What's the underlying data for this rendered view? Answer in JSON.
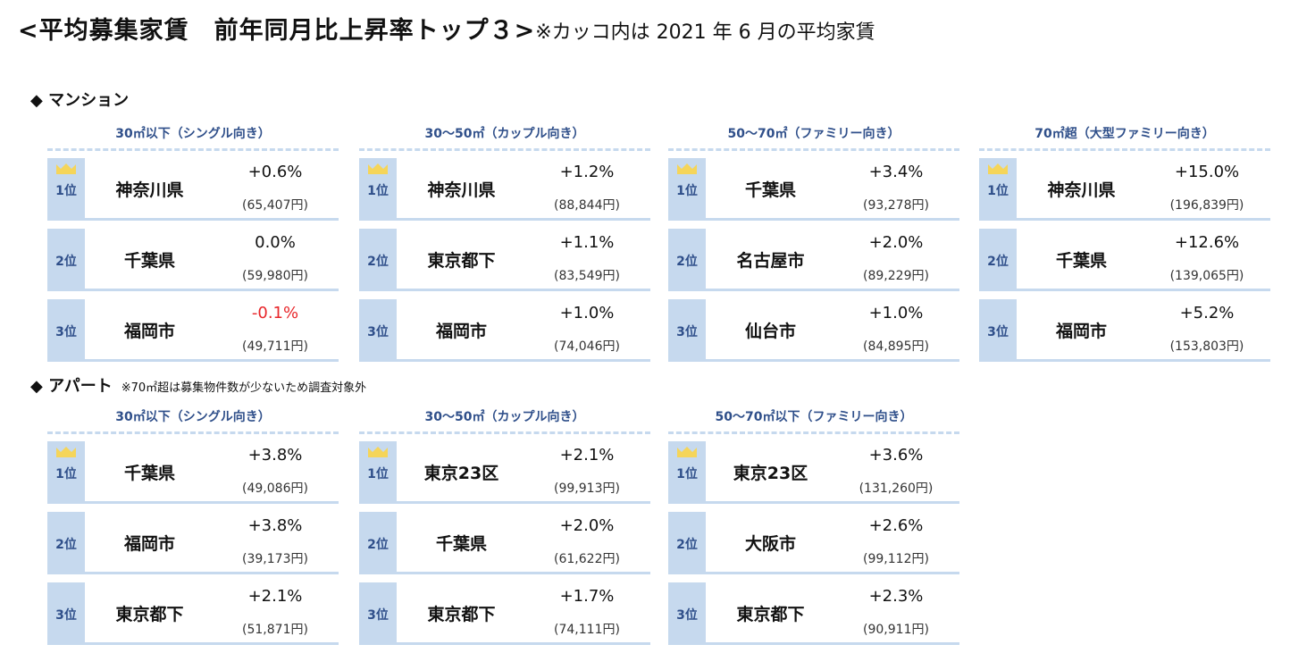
{
  "title": {
    "main": "<平均募集家賃　前年同月比上昇率トップ３>",
    "note": "※カッコ内は 2021 年 6 月の平均家賃"
  },
  "colors": {
    "accent": "#c6d9ee",
    "rank_text": "#2f4f8a",
    "crown": "#f5d55a",
    "negative": "#e8262a"
  },
  "mansion": {
    "label": "◆ マンション",
    "panels": [
      {
        "heading": "30㎡以下（シングル向き）",
        "rows": [
          {
            "rank": "1位",
            "name": "神奈川県",
            "pct": "+0.6%",
            "rent": "(65,407円)"
          },
          {
            "rank": "2位",
            "name": "千葉県",
            "pct": "0.0%",
            "rent": "(59,980円)"
          },
          {
            "rank": "3位",
            "name": "福岡市",
            "pct": "-0.1%",
            "rent": "(49,711円)"
          }
        ]
      },
      {
        "heading": "30〜50㎡（カップル向き）",
        "rows": [
          {
            "rank": "1位",
            "name": "神奈川県",
            "pct": "+1.2%",
            "rent": "(88,844円)"
          },
          {
            "rank": "2位",
            "name": "東京都下",
            "pct": "+1.1%",
            "rent": "(83,549円)"
          },
          {
            "rank": "3位",
            "name": "福岡市",
            "pct": "+1.0%",
            "rent": "(74,046円)"
          }
        ]
      },
      {
        "heading": "50〜70㎡（ファミリー向き）",
        "rows": [
          {
            "rank": "1位",
            "name": "千葉県",
            "pct": "+3.4%",
            "rent": "(93,278円)"
          },
          {
            "rank": "2位",
            "name": "名古屋市",
            "pct": "+2.0%",
            "rent": "(89,229円)"
          },
          {
            "rank": "3位",
            "name": "仙台市",
            "pct": "+1.0%",
            "rent": "(84,895円)"
          }
        ]
      },
      {
        "heading": "70㎡超（大型ファミリー向き）",
        "rows": [
          {
            "rank": "1位",
            "name": "神奈川県",
            "pct": "+15.0%",
            "rent": "(196,839円)"
          },
          {
            "rank": "2位",
            "name": "千葉県",
            "pct": "+12.6%",
            "rent": "(139,065円)"
          },
          {
            "rank": "3位",
            "name": "福岡市",
            "pct": "+5.2%",
            "rent": "(153,803円)"
          }
        ]
      }
    ]
  },
  "apart": {
    "label": "◆ アパート",
    "note": "※70㎡超は募集物件数が少ないため調査対象外",
    "panels": [
      {
        "heading": "30㎡以下（シングル向き）",
        "rows": [
          {
            "rank": "1位",
            "name": "千葉県",
            "pct": "+3.8%",
            "rent": "(49,086円)"
          },
          {
            "rank": "2位",
            "name": "福岡市",
            "pct": "+3.8%",
            "rent": "(39,173円)"
          },
          {
            "rank": "3位",
            "name": "東京都下",
            "pct": "+2.1%",
            "rent": "(51,871円)"
          }
        ]
      },
      {
        "heading": "30〜50㎡（カップル向き）",
        "rows": [
          {
            "rank": "1位",
            "name": "東京23区",
            "pct": "+2.1%",
            "rent": "(99,913円)"
          },
          {
            "rank": "2位",
            "name": "千葉県",
            "pct": "+2.0%",
            "rent": "(61,622円)"
          },
          {
            "rank": "3位",
            "name": "東京都下",
            "pct": "+1.7%",
            "rent": "(74,111円)"
          }
        ]
      },
      {
        "heading": "50〜70㎡以下（ファミリー向き）",
        "rows": [
          {
            "rank": "1位",
            "name": "東京23区",
            "pct": "+3.6%",
            "rent": "(131,260円)"
          },
          {
            "rank": "2位",
            "name": "大阪市",
            "pct": "+2.6%",
            "rent": "(99,112円)"
          },
          {
            "rank": "3位",
            "name": "東京都下",
            "pct": "+2.3%",
            "rent": "(90,911円)"
          }
        ]
      }
    ]
  }
}
